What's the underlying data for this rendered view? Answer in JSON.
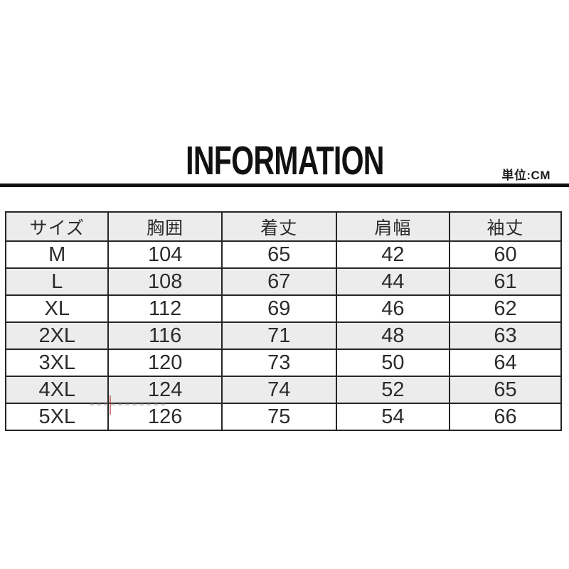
{
  "page": {
    "title": "INFORMATION",
    "unit_label": "単位:CM"
  },
  "colors": {
    "text": "#2b2b2b",
    "title": "#111111",
    "divider": "#111111",
    "table-border": "#262626",
    "row-alt-bg": "#ececec",
    "row-bg": "#ffffff",
    "watermark-red": "#b93c37"
  },
  "chart_data": {
    "type": "table",
    "title": "INFORMATION",
    "unit": "単位:CM",
    "columns": [
      "サイズ",
      "胸囲",
      "着丈",
      "肩幅",
      "袖丈"
    ],
    "rows": [
      [
        "M",
        "104",
        "65",
        "42",
        "60"
      ],
      [
        "L",
        "108",
        "67",
        "44",
        "61"
      ],
      [
        "XL",
        "112",
        "69",
        "46",
        "62"
      ],
      [
        "2XL",
        "116",
        "71",
        "48",
        "63"
      ],
      [
        "3XL",
        "120",
        "73",
        "50",
        "64"
      ],
      [
        "4XL",
        "124",
        "74",
        "52",
        "65"
      ],
      [
        "5XL",
        "126",
        "75",
        "54",
        "66"
      ]
    ],
    "layout": {
      "zebra_striping": true,
      "header_background": "#ececec",
      "column_width_fractions": [
        0.185,
        0.204,
        0.206,
        0.204,
        0.201
      ]
    }
  }
}
